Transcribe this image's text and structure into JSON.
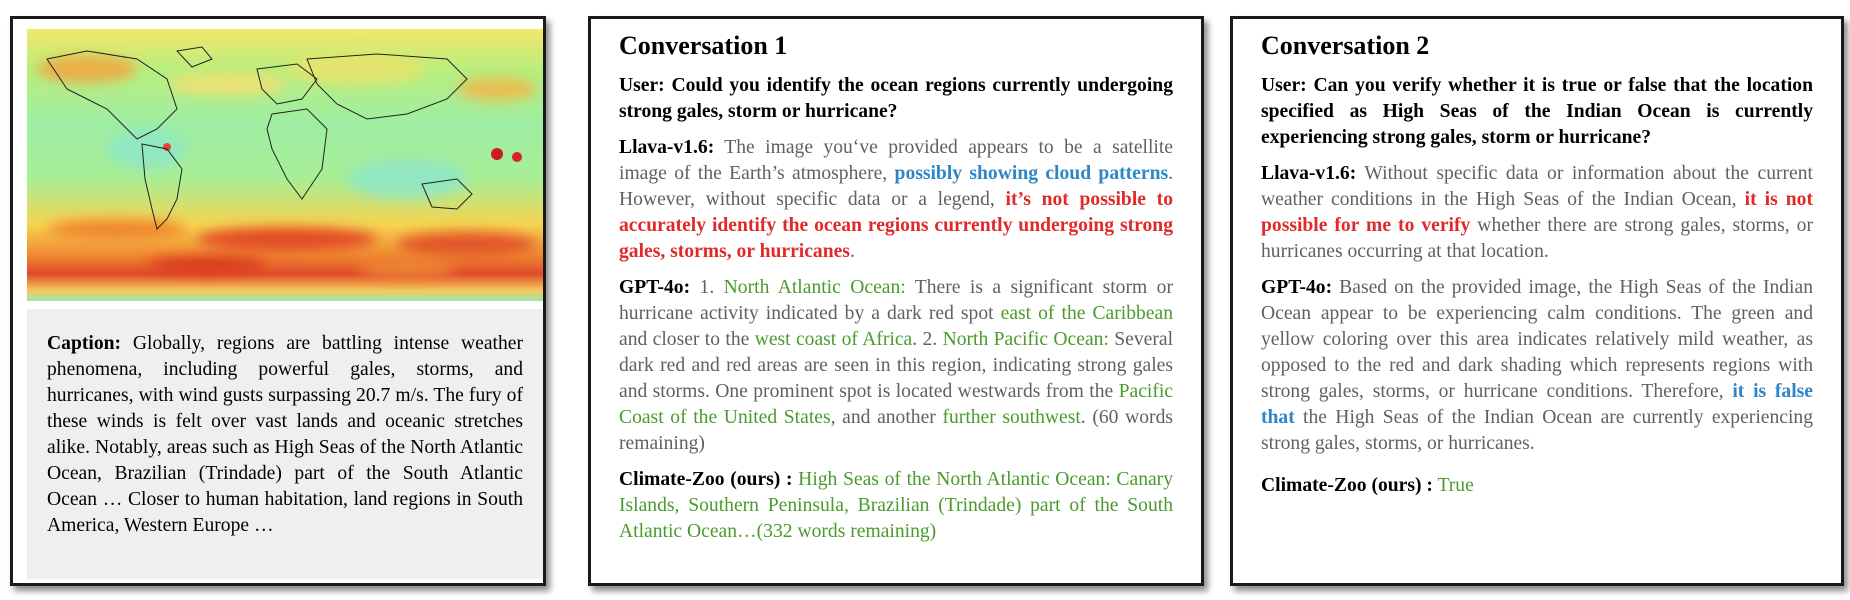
{
  "caption": {
    "label": "Caption:",
    "text": " Globally, regions are battling intense weather phenomena, including powerful gales, storms, and hurricanes, with wind gusts surpassing 20.7 m/s. The fury of these winds is felt over vast lands and oceanic stretches alike. Notably, areas such as High Seas of the North Atlantic Ocean, Brazilian (Trindade) part of the South Atlantic Ocean … Closer to human habitation, land regions in South America, Western Europe …"
  },
  "conversation1": {
    "title": "Conversation 1",
    "user": "User: Could you identify the ocean regions currently undergoing strong gales, storm or hurricane?",
    "llava": {
      "name": "Llava-v1.6:",
      "t1": " The image you‘ve provided appears to be a satellite image of the Earth’s atmosphere, ",
      "blue": "possibly showing cloud patterns",
      "t2": ". However, without specific data or a legend, ",
      "red": "it’s not possible to accurately identify the ocean regions currently undergoing strong gales, storms, or hurricanes",
      "t3": "."
    },
    "gpt": {
      "name": "GPT-4o:",
      "t1": " 1. ",
      "g1": "North Atlantic Ocean:",
      "t2": " There is a significant storm or hurricane activity indicated by a dark red spot ",
      "g2": "east of the Caribbean",
      "t3": " and closer to the ",
      "g3": "west coast of Africa",
      "t4": ". 2. ",
      "g4": "North Pacific Ocean:",
      "t5": " Several dark red and red areas are seen in this region, indicating strong gales and storms. One prominent spot is located westwards from the ",
      "g5": "Pacific Coast of the United States",
      "t6": ", and another ",
      "g6": "further southwest",
      "t7": ". (60 words remaining)"
    },
    "zoo": {
      "name": "Climate-Zoo (ours) :",
      "text": " High Seas of the North Atlantic Ocean: Canary Islands, Southern Peninsula, Brazilian (Trindade) part of the South Atlantic Ocean…(332 words remaining)"
    }
  },
  "conversation2": {
    "title": "Conversation 2",
    "user": "User: Can you verify whether it is true or false that the location specified as High Seas of the Indian Ocean is currently experiencing strong gales, storm or hurricane?",
    "llava": {
      "name": "Llava-v1.6:",
      "t1": " Without specific data or information about the current weather conditions in the High Seas of the Indian Ocean, ",
      "red": "it is not possible for me to verify",
      "t2": " whether there are strong gales, storms, or hurricanes occurring at that location."
    },
    "gpt": {
      "name": "GPT-4o:",
      "t1": " Based on the provided image, the High Seas of the Indian Ocean appear to be experiencing calm conditions. The green and yellow coloring over this area indicates relatively mild weather, as opposed to the red and dark shading which represents regions with strong gales, storms, or hurricane conditions. Therefore, ",
      "blue": "it is false that",
      "t2": " the High Seas of the Indian Ocean are currently experiencing strong gales, storms, or hurricanes."
    },
    "zoo": {
      "name": "Climate-Zoo (ours) :",
      "text": " True"
    }
  },
  "colors": {
    "green": "#4a9a2c",
    "blue": "#2c87c8",
    "red": "#e02a2a",
    "gray": "#606060"
  }
}
